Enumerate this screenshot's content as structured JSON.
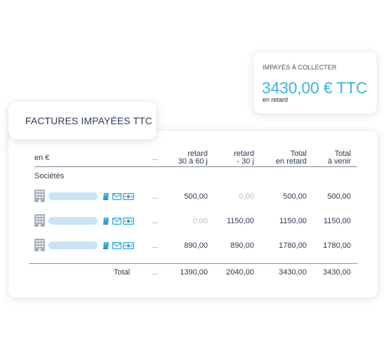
{
  "kpi": {
    "label": "IMPAYÉS À COLLECTER",
    "value": "3430,00 € TTC",
    "sub": "en retard"
  },
  "title": "FACTURES IMPAYÉES TTC",
  "table": {
    "unit_label": "en €",
    "ellipsis": "...",
    "headers": {
      "col1": [
        "retard",
        "30 à 60 j"
      ],
      "col2": [
        "retard",
        "- 30 j"
      ],
      "col3": [
        "Total",
        "en retard"
      ],
      "col4": [
        "Total",
        "à venir"
      ]
    },
    "section_label": "Sociétés",
    "rows": [
      {
        "values": [
          "500,00",
          "0,00",
          "500,00",
          "500,00"
        ],
        "muted": [
          false,
          true,
          false,
          false
        ]
      },
      {
        "values": [
          "0,00",
          "1150,00",
          "1150,00",
          "1150,00"
        ],
        "muted": [
          true,
          false,
          false,
          false
        ]
      },
      {
        "values": [
          "890,00",
          "890,00",
          "1780,00",
          "1780,00"
        ],
        "muted": [
          false,
          false,
          false,
          false
        ]
      }
    ],
    "total": {
      "label": "Total",
      "values": [
        "1390,00",
        "2040,00",
        "3430,00",
        "3430,00"
      ]
    }
  },
  "colors": {
    "accent": "#3ab4e6",
    "icon_blue": "#2aa6d9",
    "placeholder_bar": "#c6e4f6",
    "building_gray": "#a9b1bc"
  },
  "icons": [
    "building-icon",
    "book-icon",
    "mail-icon",
    "banknote-icon"
  ]
}
